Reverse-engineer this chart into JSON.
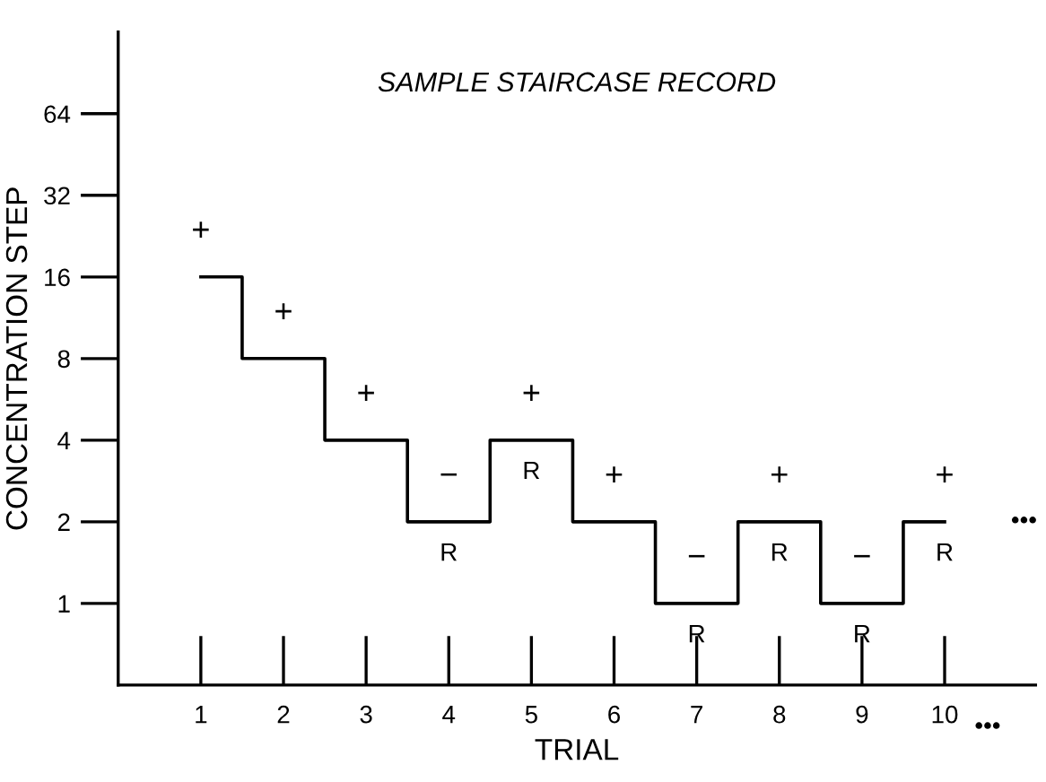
{
  "chart_data": {
    "type": "step",
    "title": "SAMPLE STAIRCASE RECORD",
    "xlabel": "TRIAL",
    "ylabel": "CONCENTRATION STEP",
    "x": [
      1,
      2,
      3,
      4,
      5,
      6,
      7,
      8,
      9,
      10
    ],
    "series": [
      {
        "color": "#000000",
        "values": [
          16,
          8,
          4,
          2,
          4,
          2,
          1,
          2,
          1,
          2
        ]
      }
    ],
    "log": "y",
    "xlim": [
      0,
      11.1
    ],
    "xticks": [
      1,
      2,
      3,
      4,
      5,
      6,
      7,
      8,
      9,
      10
    ],
    "ylim": [
      0.5,
      128
    ],
    "yticks": [
      1,
      2,
      4,
      8,
      16,
      32,
      64
    ],
    "line_style": "solid",
    "annotations": [
      {
        "text": "+",
        "x": 1,
        "y": 16
      },
      {
        "text": "+",
        "x": 2,
        "y": 8
      },
      {
        "text": "+",
        "x": 3,
        "y": 4
      },
      {
        "text": "−",
        "x": 4,
        "y": 2
      },
      {
        "text": "R",
        "x": 4,
        "y": 2
      },
      {
        "text": "+",
        "x": 5,
        "y": 4
      },
      {
        "text": "R",
        "x": 5,
        "y": 4
      },
      {
        "text": "+",
        "x": 6,
        "y": 2
      },
      {
        "text": "−",
        "x": 7,
        "y": 1
      },
      {
        "text": "R",
        "x": 7,
        "y": 1
      },
      {
        "text": "+",
        "x": 8,
        "y": 2
      },
      {
        "text": "R",
        "x": 8,
        "y": 2
      },
      {
        "text": "−",
        "x": 9,
        "y": 1
      },
      {
        "text": "R",
        "x": 9,
        "y": 1
      },
      {
        "text": "+",
        "x": 10,
        "y": 2
      },
      {
        "text": "R",
        "x": 10,
        "y": 2
      },
      "•••",
      "•••"
    ]
  }
}
